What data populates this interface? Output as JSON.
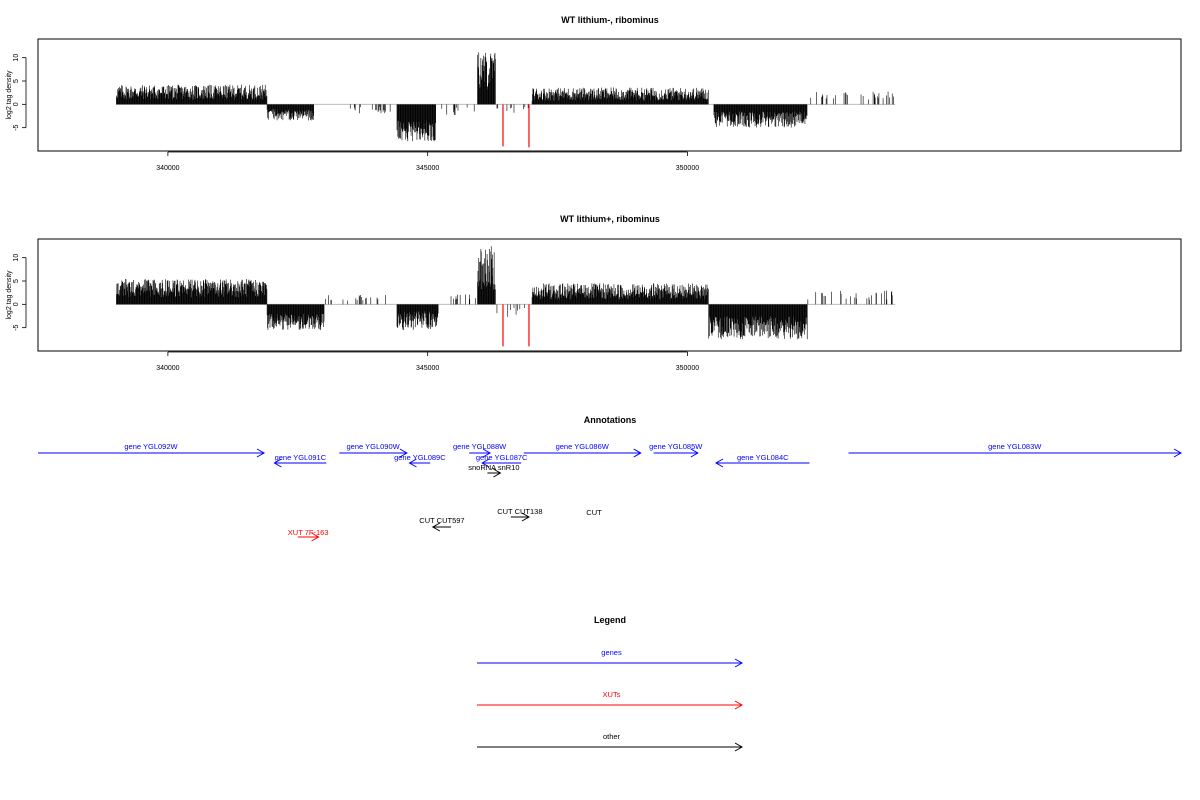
{
  "chart_data": [
    {
      "type": "bar",
      "title": "WT lithium-, ribominus",
      "ylabel": "log2 tag density",
      "xlabel": "",
      "xlim": [
        337500,
        359500
      ],
      "ylim": [
        -10,
        14
      ],
      "x_ticks": [
        340000,
        345000,
        350000
      ],
      "y_ticks": [
        -5,
        0,
        5,
        10
      ],
      "grid": false,
      "baseline_range": [
        339000,
        354000
      ],
      "segments": [
        {
          "start": 339000,
          "end": 341900,
          "sign": "pos",
          "low": 1.0,
          "high": 4.2
        },
        {
          "start": 341900,
          "end": 342800,
          "sign": "neg",
          "low": 1.0,
          "high": 3.5
        },
        {
          "start": 343500,
          "end": 344400,
          "sign": "sparse_neg",
          "low": 0.5,
          "high": 2.0
        },
        {
          "start": 344400,
          "end": 345150,
          "sign": "neg",
          "low": 3.5,
          "high": 8.0
        },
        {
          "start": 345150,
          "end": 345900,
          "sign": "sparse_neg",
          "low": 0.5,
          "high": 2.5
        },
        {
          "start": 345950,
          "end": 346300,
          "sign": "pos",
          "low": 3.0,
          "high": 11.5
        },
        {
          "start": 346300,
          "end": 347000,
          "sign": "sparse_neg",
          "low": 0.5,
          "high": 2.0
        },
        {
          "start": 347000,
          "end": 350400,
          "sign": "pos",
          "low": 0.8,
          "high": 3.6
        },
        {
          "start": 350500,
          "end": 352300,
          "sign": "neg",
          "low": 1.5,
          "high": 5.0
        },
        {
          "start": 352300,
          "end": 354000,
          "sign": "sparse_pos",
          "low": 1.0,
          "high": 2.8
        }
      ],
      "red_marks": [
        {
          "x": 346450,
          "value": -9.0
        },
        {
          "x": 346950,
          "value": -9.2
        }
      ]
    },
    {
      "type": "bar",
      "title": "WT lithium+, ribominus",
      "ylabel": "log2 tag density",
      "xlabel": "",
      "xlim": [
        337500,
        359500
      ],
      "ylim": [
        -10,
        14
      ],
      "x_ticks": [
        340000,
        345000,
        350000
      ],
      "y_ticks": [
        -5,
        0,
        5,
        10
      ],
      "grid": false,
      "baseline_range": [
        339000,
        354000
      ],
      "segments": [
        {
          "start": 339000,
          "end": 341900,
          "sign": "pos",
          "low": 1.5,
          "high": 5.5
        },
        {
          "start": 341900,
          "end": 343000,
          "sign": "neg",
          "low": 2.0,
          "high": 5.5
        },
        {
          "start": 343000,
          "end": 344400,
          "sign": "sparse_pos",
          "low": 0.8,
          "high": 2.0
        },
        {
          "start": 344400,
          "end": 345200,
          "sign": "neg",
          "low": 1.5,
          "high": 5.5
        },
        {
          "start": 345200,
          "end": 345950,
          "sign": "sparse_pos",
          "low": 0.8,
          "high": 2.5
        },
        {
          "start": 345950,
          "end": 346300,
          "sign": "pos",
          "low": 3.0,
          "high": 12.5
        },
        {
          "start": 346300,
          "end": 347000,
          "sign": "sparse_neg",
          "low": 0.5,
          "high": 3.0
        },
        {
          "start": 347000,
          "end": 350400,
          "sign": "pos",
          "low": 1.0,
          "high": 4.5
        },
        {
          "start": 350400,
          "end": 352300,
          "sign": "neg",
          "low": 2.5,
          "high": 7.5
        },
        {
          "start": 352300,
          "end": 354000,
          "sign": "sparse_pos",
          "low": 1.0,
          "high": 3.0
        }
      ],
      "red_marks": [
        {
          "x": 346450,
          "value": -9.0
        },
        {
          "x": 346950,
          "value": -9.0
        }
      ]
    }
  ],
  "annotations": {
    "title": "Annotations",
    "features": [
      {
        "label": "gene YGL092W",
        "start": 337500,
        "end": 341850,
        "strand": "+",
        "category": "gene",
        "row": 0
      },
      {
        "label": "gene YGL091C",
        "start": 342050,
        "end": 343050,
        "strand": "-",
        "category": "gene",
        "row": 1
      },
      {
        "label": "gene YGL090W",
        "start": 343300,
        "end": 344600,
        "strand": "+",
        "category": "gene",
        "row": 0
      },
      {
        "label": "gene YGL089C",
        "start": 344650,
        "end": 345050,
        "strand": "-",
        "category": "gene",
        "row": 1
      },
      {
        "label": "gene YGL088W",
        "start": 345800,
        "end": 346200,
        "strand": "+",
        "category": "gene",
        "row": 0
      },
      {
        "label": "gene YGL087C",
        "start": 346050,
        "end": 346800,
        "strand": "-",
        "category": "gene",
        "row": 1
      },
      {
        "label": "gene YGL086W",
        "start": 346850,
        "end": 349100,
        "strand": "+",
        "category": "gene",
        "row": 0
      },
      {
        "label": "gene YGL085W",
        "start": 349350,
        "end": 350200,
        "strand": "+",
        "category": "gene",
        "row": 0
      },
      {
        "label": "gene YGL084C",
        "start": 350550,
        "end": 352350,
        "strand": "-",
        "category": "gene",
        "row": 1
      },
      {
        "label": "gene YGL083W",
        "start": 353100,
        "end": 359500,
        "strand": "+",
        "category": "gene",
        "row": 0
      },
      {
        "label": "snoRNA snR10",
        "start": 346150,
        "end": 346400,
        "strand": "+",
        "category": "other",
        "row": 2
      },
      {
        "label": "CUT CUT138",
        "start": 346600,
        "end": 346950,
        "strand": "+",
        "category": "other",
        "row": 3
      },
      {
        "label": "CUT CUT597",
        "start": 345100,
        "end": 345450,
        "strand": "-",
        "category": "other",
        "row": 4
      },
      {
        "label": "XUT 7F-163",
        "start": 342500,
        "end": 342900,
        "strand": "+",
        "category": "xut",
        "row": 5
      }
    ],
    "overlap_label": "CUT",
    "overlap_label_x": 346150
  },
  "legend": {
    "title": "Legend",
    "items": [
      {
        "label": "genes",
        "color": "#0000ff"
      },
      {
        "label": "XUTs",
        "color": "#ff0000"
      },
      {
        "label": "other",
        "color": "#000000"
      }
    ]
  },
  "colors": {
    "gene": "#0000ff",
    "xut": "#ff0000",
    "other": "#000000",
    "red_mark": "#ff0000",
    "baseline": "#bbbbbb"
  }
}
